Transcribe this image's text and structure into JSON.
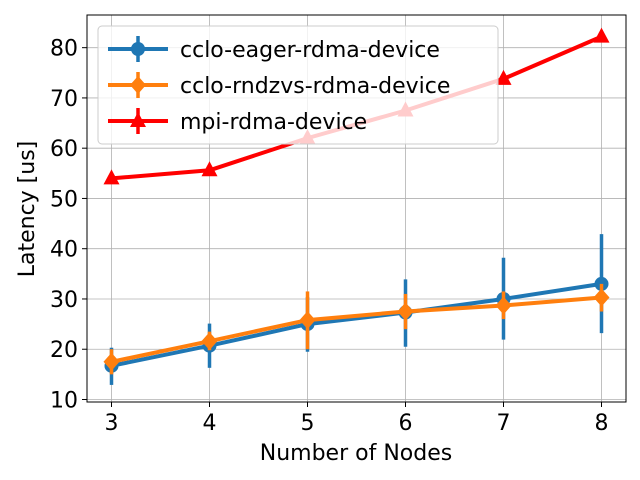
{
  "chart_data": {
    "type": "line",
    "title": "",
    "xlabel": "Number of Nodes",
    "ylabel": "Latency [us]",
    "x": [
      3,
      4,
      5,
      6,
      7,
      8
    ],
    "xlim": [
      2.75,
      8.25
    ],
    "ylim": [
      9.5,
      86.5
    ],
    "xticks": [
      3,
      4,
      5,
      6,
      7,
      8
    ],
    "yticks": [
      10,
      20,
      30,
      40,
      50,
      60,
      70,
      80
    ],
    "grid": true,
    "legend_position": "top-left",
    "series": [
      {
        "name": "cclo-eager-rdma-device",
        "color": "#1f77b4",
        "marker": "circle",
        "values": [
          16.7,
          20.7,
          25.0,
          27.3,
          30.0,
          33.0
        ],
        "err_low": [
          12.9,
          16.3,
          19.5,
          20.5,
          21.9,
          23.2
        ],
        "err_high": [
          20.3,
          25.1,
          30.4,
          33.9,
          38.2,
          42.9
        ]
      },
      {
        "name": "cclo-rndzvs-rdma-device",
        "color": "#ff7f0e",
        "marker": "diamond",
        "values": [
          17.5,
          21.6,
          25.8,
          27.5,
          28.7,
          30.3
        ],
        "err_low": [
          15.0,
          19.8,
          20.0,
          24.0,
          26.0,
          27.5
        ],
        "err_high": [
          20.0,
          23.5,
          31.5,
          31.0,
          31.5,
          33.0
        ]
      },
      {
        "name": "mpi-rdma-device",
        "color": "#ff0000",
        "marker": "triangle",
        "values": [
          54.0,
          55.6,
          62.0,
          67.5,
          73.8,
          82.2
        ],
        "err_low": [
          53.6,
          55.2,
          61.4,
          66.9,
          73.2,
          81.6
        ],
        "err_high": [
          54.4,
          56.0,
          62.6,
          68.1,
          74.4,
          82.8
        ]
      }
    ]
  }
}
